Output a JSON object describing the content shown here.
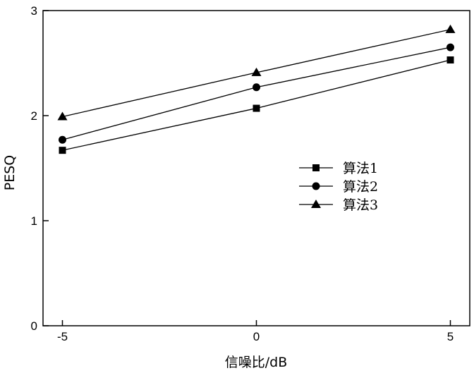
{
  "chart_data": {
    "type": "line",
    "title": "",
    "xlabel": "信噪比/dB",
    "ylabel": "PESQ",
    "x": [
      -5,
      0,
      5
    ],
    "x_tick_labels": [
      "-5",
      "0",
      "5"
    ],
    "y_tick_labels": [
      "0",
      "1",
      "2",
      "3"
    ],
    "yticks": [
      0,
      1,
      2,
      3
    ],
    "xlim": [
      -5.5,
      5.5
    ],
    "ylim": [
      0,
      3
    ],
    "grid": false,
    "legend_position": "right-center",
    "series": [
      {
        "name": "算法1",
        "marker": "square",
        "values": [
          1.67,
          2.07,
          2.53
        ]
      },
      {
        "name": "算法2",
        "marker": "circle",
        "values": [
          1.77,
          2.27,
          2.65
        ]
      },
      {
        "name": "算法3",
        "marker": "triangle",
        "values": [
          1.99,
          2.41,
          2.82
        ]
      }
    ],
    "line_color": "#000000"
  }
}
